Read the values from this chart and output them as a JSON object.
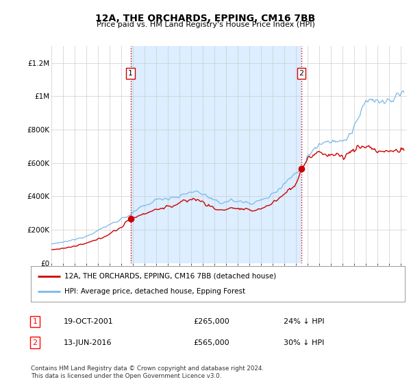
{
  "title": "12A, THE ORCHARDS, EPPING, CM16 7BB",
  "subtitle": "Price paid vs. HM Land Registry's House Price Index (HPI)",
  "ylim": [
    0,
    1300000
  ],
  "yticks": [
    0,
    200000,
    400000,
    600000,
    800000,
    1000000,
    1200000
  ],
  "ytick_labels": [
    "£0",
    "£200K",
    "£400K",
    "£600K",
    "£800K",
    "£1M",
    "£1.2M"
  ],
  "line1_color": "#cc0000",
  "line2_color": "#7ab8e8",
  "shade_color": "#dceeff",
  "vline_color": "#cc0000",
  "background_color": "#ffffff",
  "grid_color": "#cccccc",
  "legend_line1": "12A, THE ORCHARDS, EPPING, CM16 7BB (detached house)",
  "legend_line2": "HPI: Average price, detached house, Epping Forest",
  "annotation1_date": "19-OCT-2001",
  "annotation1_price": "£265,000",
  "annotation1_hpi": "24% ↓ HPI",
  "annotation2_date": "13-JUN-2016",
  "annotation2_price": "£565,000",
  "annotation2_hpi": "30% ↓ HPI",
  "footnote": "Contains HM Land Registry data © Crown copyright and database right 2024.\nThis data is licensed under the Open Government Licence v3.0.",
  "sale1_x": 2001.8,
  "sale1_y": 265000,
  "sale2_x": 2016.45,
  "sale2_y": 565000,
  "xmin": 1995,
  "xmax": 2025.5,
  "xticks": [
    1995,
    1996,
    1997,
    1998,
    1999,
    2000,
    2001,
    2002,
    2003,
    2004,
    2005,
    2006,
    2007,
    2008,
    2009,
    2010,
    2011,
    2012,
    2013,
    2014,
    2015,
    2016,
    2017,
    2018,
    2019,
    2020,
    2021,
    2022,
    2023,
    2024,
    2025
  ]
}
